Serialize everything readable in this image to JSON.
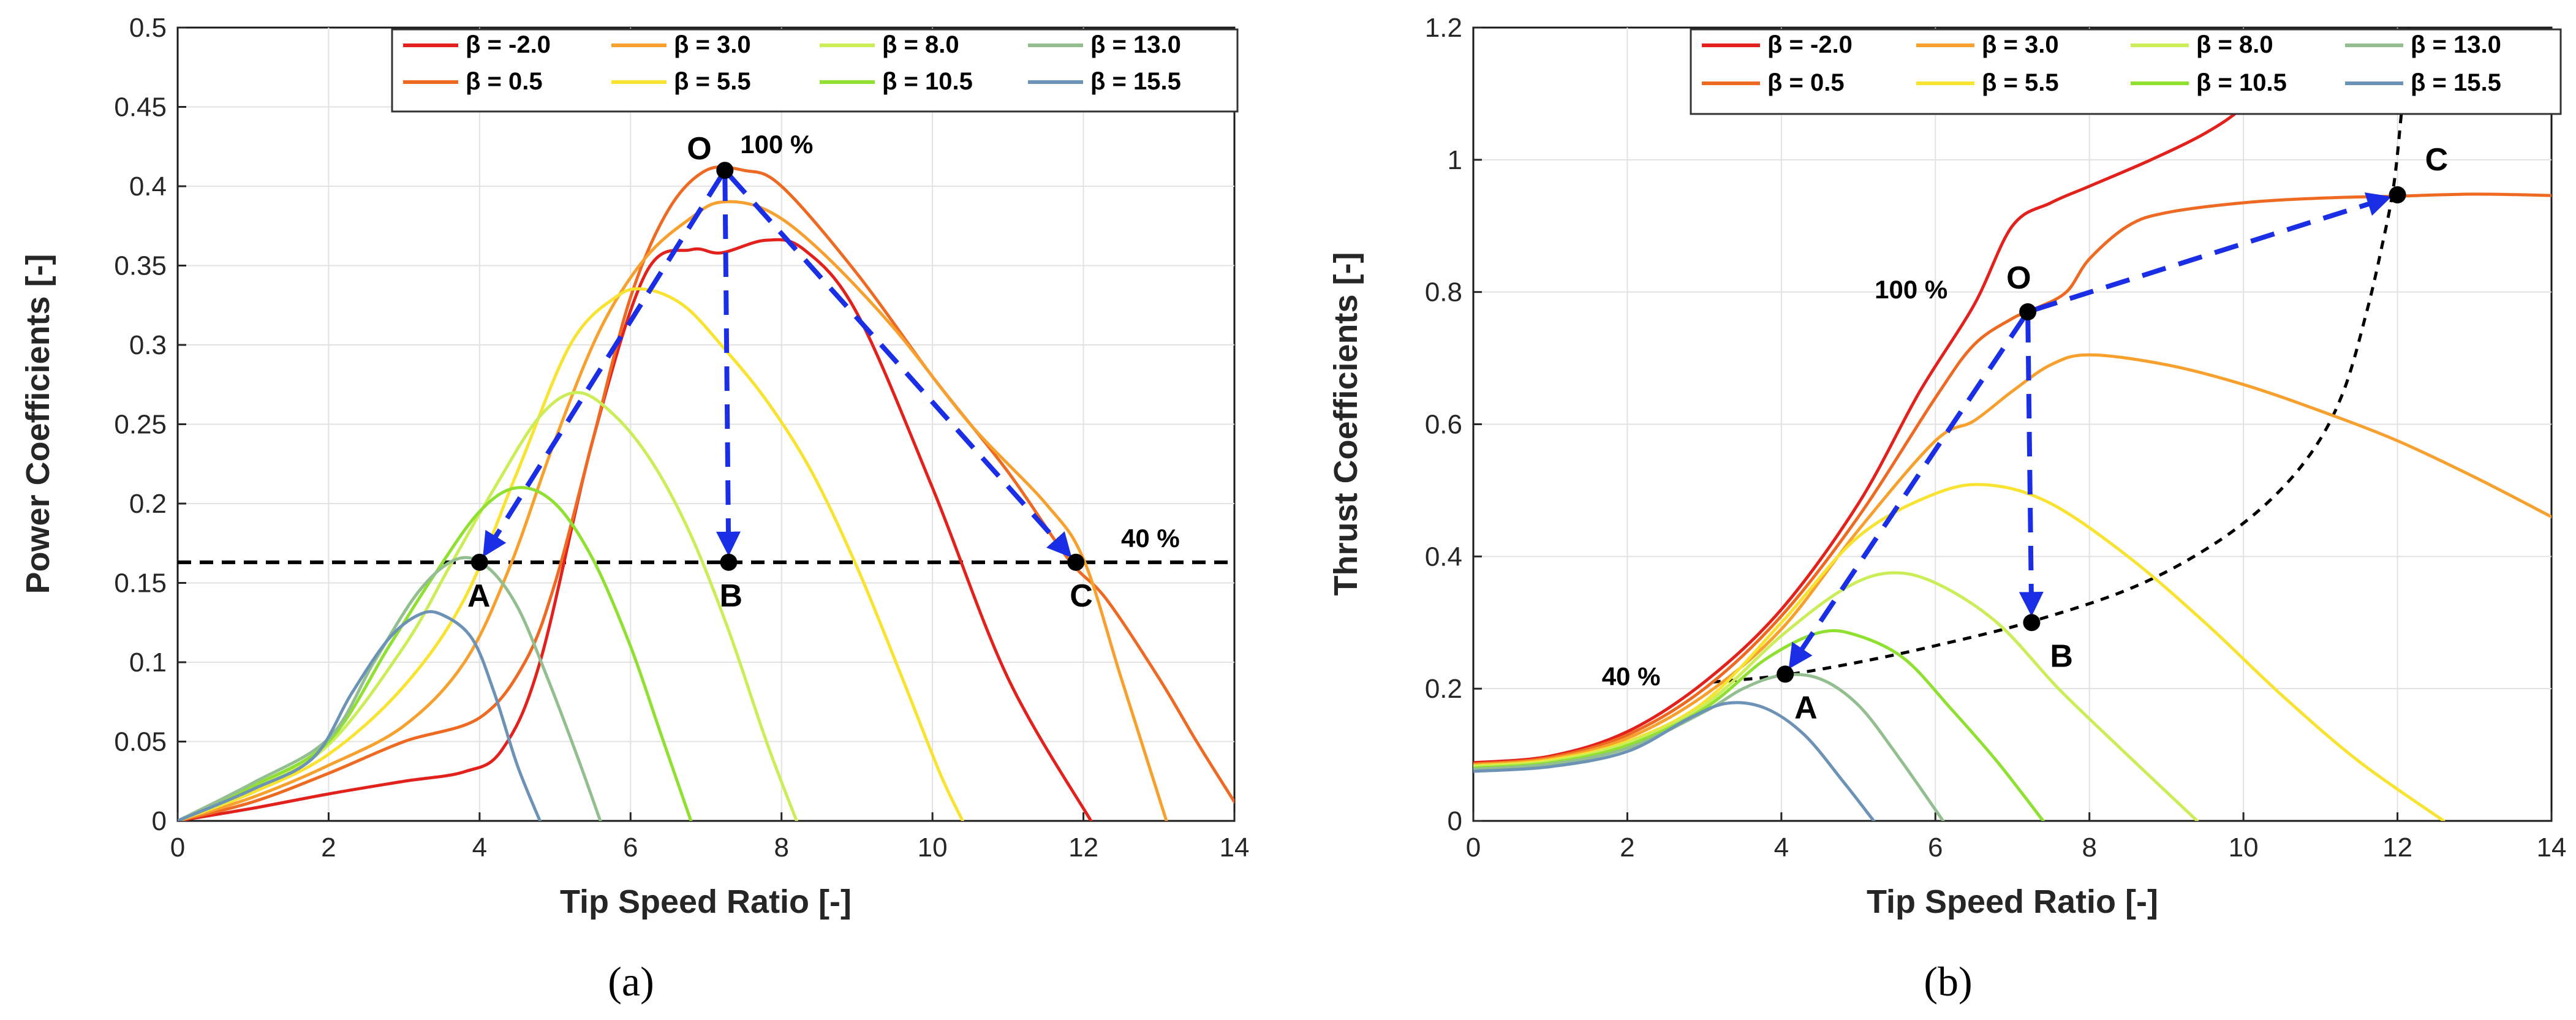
{
  "colors": {
    "beta_-2.0": "#e3211c",
    "beta_0.5": "#ee6a22",
    "beta_3.0": "#f7a02d",
    "beta_5.5": "#f7e330",
    "beta_8.0": "#cbee58",
    "beta_10.5": "#8fe030",
    "beta_13.0": "#93bf90",
    "beta_15.5": "#6c93b5",
    "arrow": "#1a2ee6"
  },
  "chart_data": [
    {
      "id": "a",
      "type": "line",
      "caption": "(a)",
      "title": "",
      "xlabel": "Tip Speed Ratio [-]",
      "ylabel": "Power Coefficients [-]",
      "xlim": [
        0,
        14
      ],
      "ylim": [
        0,
        0.5
      ],
      "grid": true,
      "legend_position": "top-right",
      "xticks": [
        0,
        2,
        4,
        6,
        8,
        10,
        12,
        14
      ],
      "xtick_labels": [
        "0",
        "2",
        "4",
        "6",
        "8",
        "10",
        "12",
        "14"
      ],
      "yticks": [
        0,
        0.05,
        0.1,
        0.15,
        0.2,
        0.25,
        0.3,
        0.35,
        0.4,
        0.45,
        0.5
      ],
      "ytick_labels": [
        "0",
        "0.05",
        "0.1",
        "0.15",
        "0.2",
        "0.25",
        "0.3",
        "0.35",
        "0.4",
        "0.45",
        "0.5"
      ],
      "series": [
        {
          "name": "β = -2.0",
          "beta": "-2.0",
          "color_key": "beta_-2.0",
          "x": [
            0,
            1,
            2,
            3,
            3.8,
            4.3,
            4.8,
            5.5,
            6.2,
            6.8,
            7.2,
            7.8,
            8.3,
            9,
            10,
            11,
            12.1
          ],
          "y": [
            0,
            0.008,
            0.017,
            0.025,
            0.031,
            0.045,
            0.1,
            0.24,
            0.345,
            0.36,
            0.358,
            0.366,
            0.36,
            0.32,
            0.21,
            0.09,
            0
          ]
        },
        {
          "name": "β = 0.5",
          "beta": "0.5",
          "color_key": "beta_0.5",
          "x": [
            0,
            1,
            2,
            3,
            4,
            4.6,
            5,
            5.5,
            6,
            6.5,
            7,
            7.5,
            8,
            9,
            10,
            11,
            11.8,
            12.3,
            13,
            13.5,
            14
          ],
          "y": [
            0,
            0.012,
            0.03,
            0.05,
            0.065,
            0.1,
            0.15,
            0.24,
            0.33,
            0.385,
            0.41,
            0.41,
            0.4,
            0.345,
            0.28,
            0.22,
            0.165,
            0.14,
            0.09,
            0.05,
            0.012
          ]
        },
        {
          "name": "β = 3.0",
          "beta": "3.0",
          "color_key": "beta_3.0",
          "x": [
            0,
            1,
            2,
            3,
            3.8,
            4.4,
            5,
            5.6,
            6.2,
            6.8,
            7.2,
            7.8,
            8.5,
            9.5,
            10.5,
            11.5,
            12,
            12.5,
            13.1
          ],
          "y": [
            0,
            0.015,
            0.035,
            0.06,
            0.1,
            0.16,
            0.24,
            0.31,
            0.355,
            0.38,
            0.39,
            0.385,
            0.36,
            0.31,
            0.25,
            0.2,
            0.165,
            0.09,
            0
          ]
        },
        {
          "name": "β = 5.5",
          "beta": "5.5",
          "color_key": "beta_5.5",
          "x": [
            0,
            1,
            2,
            3,
            3.8,
            4.5,
            5.2,
            5.8,
            6.2,
            6.7,
            7.2,
            7.8,
            8.4,
            9,
            9.6,
            10.1,
            10.4
          ],
          "y": [
            0,
            0.018,
            0.042,
            0.085,
            0.14,
            0.22,
            0.3,
            0.33,
            0.335,
            0.325,
            0.3,
            0.265,
            0.22,
            0.16,
            0.09,
            0.03,
            0
          ]
        },
        {
          "name": "β = 8.0",
          "beta": "8.0",
          "color_key": "beta_8.0",
          "x": [
            0,
            1,
            2,
            3,
            3.6,
            4.2,
            4.8,
            5.3,
            5.8,
            6.3,
            6.8,
            7.3,
            7.8,
            8.2
          ],
          "y": [
            0,
            0.02,
            0.048,
            0.11,
            0.16,
            0.21,
            0.255,
            0.27,
            0.255,
            0.225,
            0.18,
            0.12,
            0.05,
            0
          ]
        },
        {
          "name": "β = 10.5",
          "beta": "10.5",
          "color_key": "beta_10.5",
          "x": [
            0,
            1,
            2,
            2.8,
            3.4,
            4,
            4.5,
            5,
            5.5,
            6,
            6.4,
            6.8
          ],
          "y": [
            0,
            0.022,
            0.05,
            0.11,
            0.155,
            0.195,
            0.21,
            0.2,
            0.165,
            0.11,
            0.055,
            0
          ]
        },
        {
          "name": "β = 13.0",
          "beta": "13.0",
          "color_key": "beta_13.0",
          "x": [
            0,
            1,
            2,
            2.6,
            3.2,
            3.7,
            4.1,
            4.5,
            4.9,
            5.3,
            5.6
          ],
          "y": [
            0,
            0.024,
            0.052,
            0.1,
            0.145,
            0.165,
            0.16,
            0.135,
            0.09,
            0.04,
            0
          ]
        },
        {
          "name": "β = 15.5",
          "beta": "15.5",
          "color_key": "beta_15.5",
          "x": [
            0,
            1,
            1.8,
            2.3,
            2.8,
            3.2,
            3.5,
            3.9,
            4.2,
            4.5,
            4.8
          ],
          "y": [
            0,
            0.02,
            0.04,
            0.08,
            0.115,
            0.13,
            0.13,
            0.115,
            0.08,
            0.035,
            0
          ]
        }
      ],
      "reference_lines": [
        {
          "type": "horizontal",
          "y": 0.163,
          "label": "40 %"
        }
      ],
      "points": [
        {
          "label": "O",
          "x": 7.25,
          "y": 0.41
        },
        {
          "label": "A",
          "x": 4.0,
          "y": 0.163
        },
        {
          "label": "B",
          "x": 7.3,
          "y": 0.163
        },
        {
          "label": "C",
          "x": 11.9,
          "y": 0.163
        }
      ],
      "point_annotations": [
        {
          "text": "100 %",
          "x": 7.25,
          "y": 0.41
        }
      ],
      "arrows": [
        {
          "from": "O",
          "to": "A"
        },
        {
          "from": "O",
          "to": "B"
        },
        {
          "from": "O",
          "to": "C"
        }
      ]
    },
    {
      "id": "b",
      "type": "line",
      "caption": "(b)",
      "title": "",
      "xlabel": "Tip Speed Ratio [-]",
      "ylabel": "Thrust Coefficients [-]",
      "xlim": [
        0,
        14
      ],
      "ylim": [
        0,
        1.2
      ],
      "grid": true,
      "legend_position": "top-right",
      "xticks": [
        0,
        2,
        4,
        6,
        8,
        10,
        12,
        14
      ],
      "xtick_labels": [
        "0",
        "2",
        "4",
        "6",
        "8",
        "10",
        "12",
        "14"
      ],
      "yticks": [
        0,
        0.2,
        0.4,
        0.6,
        0.8,
        1.0,
        1.2
      ],
      "ytick_labels": [
        "0",
        "0.2",
        "0.4",
        "0.6",
        "0.8",
        "1",
        "1.2"
      ],
      "series": [
        {
          "name": "β = -2.0",
          "beta": "-2.0",
          "color_key": "beta_-2.0",
          "x": [
            0,
            1,
            2,
            3,
            4,
            5,
            5.8,
            6.5,
            7,
            7.5,
            8,
            8.8,
            9.5,
            10,
            10.5
          ],
          "y": [
            0.088,
            0.098,
            0.135,
            0.21,
            0.32,
            0.48,
            0.65,
            0.78,
            0.9,
            0.935,
            0.96,
            1.0,
            1.04,
            1.08,
            1.14
          ]
        },
        {
          "name": "β = 0.5",
          "beta": "0.5",
          "color_key": "beta_0.5",
          "x": [
            0,
            1,
            2,
            3,
            4,
            5,
            6,
            6.5,
            7,
            7.3,
            7.7,
            8,
            8.5,
            9,
            10,
            11,
            12,
            13,
            14
          ],
          "y": [
            0.086,
            0.096,
            0.13,
            0.2,
            0.31,
            0.46,
            0.64,
            0.72,
            0.76,
            0.775,
            0.8,
            0.85,
            0.9,
            0.92,
            0.935,
            0.942,
            0.945,
            0.948,
            0.946
          ]
        },
        {
          "name": "β = 3.0",
          "beta": "3.0",
          "color_key": "beta_3.0",
          "x": [
            0,
            1,
            2,
            3,
            4,
            5,
            6,
            6.5,
            7,
            7.5,
            8,
            9,
            10,
            11,
            12,
            13,
            14
          ],
          "y": [
            0.085,
            0.094,
            0.125,
            0.19,
            0.29,
            0.44,
            0.575,
            0.605,
            0.65,
            0.69,
            0.705,
            0.69,
            0.66,
            0.62,
            0.575,
            0.52,
            0.46
          ]
        },
        {
          "name": "β = 5.5",
          "beta": "5.5",
          "color_key": "beta_5.5",
          "x": [
            0,
            1,
            2,
            3,
            4,
            5,
            6,
            6.7,
            7.5,
            8.5,
            9.5,
            10.5,
            11.5,
            12.6
          ],
          "y": [
            0.083,
            0.092,
            0.12,
            0.18,
            0.3,
            0.43,
            0.495,
            0.508,
            0.48,
            0.4,
            0.3,
            0.19,
            0.09,
            0
          ]
        },
        {
          "name": "β = 8.0",
          "beta": "8.0",
          "color_key": "beta_8.0",
          "x": [
            0,
            1,
            2,
            3,
            4,
            4.8,
            5.4,
            6,
            6.8,
            7.6,
            8.4,
            9.4
          ],
          "y": [
            0.082,
            0.09,
            0.118,
            0.175,
            0.28,
            0.35,
            0.375,
            0.36,
            0.3,
            0.2,
            0.11,
            0
          ]
        },
        {
          "name": "β = 10.5",
          "beta": "10.5",
          "color_key": "beta_10.5",
          "x": [
            0,
            1,
            2,
            3,
            3.8,
            4.5,
            5,
            5.6,
            6.2,
            6.8,
            7.4
          ],
          "y": [
            0.08,
            0.088,
            0.114,
            0.17,
            0.245,
            0.285,
            0.28,
            0.245,
            0.17,
            0.09,
            0
          ]
        },
        {
          "name": "β = 13.0",
          "beta": "13.0",
          "color_key": "beta_13.0",
          "x": [
            0,
            1,
            2,
            3,
            3.5,
            4,
            4.5,
            5,
            5.5,
            6.1
          ],
          "y": [
            0.078,
            0.086,
            0.11,
            0.165,
            0.2,
            0.22,
            0.215,
            0.175,
            0.1,
            0
          ]
        },
        {
          "name": "β = 15.5",
          "beta": "15.5",
          "color_key": "beta_15.5",
          "x": [
            0,
            1,
            2,
            2.8,
            3.3,
            3.8,
            4.3,
            4.8,
            5.2
          ],
          "y": [
            0.075,
            0.082,
            0.105,
            0.155,
            0.178,
            0.17,
            0.13,
            0.06,
            0
          ]
        }
      ],
      "reference_curves": [
        {
          "style": "dashed",
          "label": "40 %",
          "x": [
            3.1,
            4,
            5,
            6,
            7.2,
            8.5,
            9.5,
            10.3,
            10.9,
            11.3,
            11.6,
            11.8,
            11.95,
            12.05,
            12.15
          ],
          "y": [
            0.21,
            0.22,
            0.24,
            0.265,
            0.3,
            0.35,
            0.41,
            0.48,
            0.56,
            0.65,
            0.77,
            0.87,
            0.96,
            1.07,
            1.2
          ]
        }
      ],
      "points": [
        {
          "label": "O",
          "x": 7.2,
          "y": 0.77
        },
        {
          "label": "A",
          "x": 4.05,
          "y": 0.222
        },
        {
          "label": "B",
          "x": 7.25,
          "y": 0.3
        },
        {
          "label": "C",
          "x": 12.0,
          "y": 0.947
        }
      ],
      "point_annotations": [
        {
          "text": "100 %",
          "x": 7.2,
          "y": 0.77
        }
      ],
      "arrows": [
        {
          "from": "O",
          "to": "A"
        },
        {
          "from": "O",
          "to": "B"
        },
        {
          "from": "O",
          "to": "C"
        }
      ]
    }
  ]
}
